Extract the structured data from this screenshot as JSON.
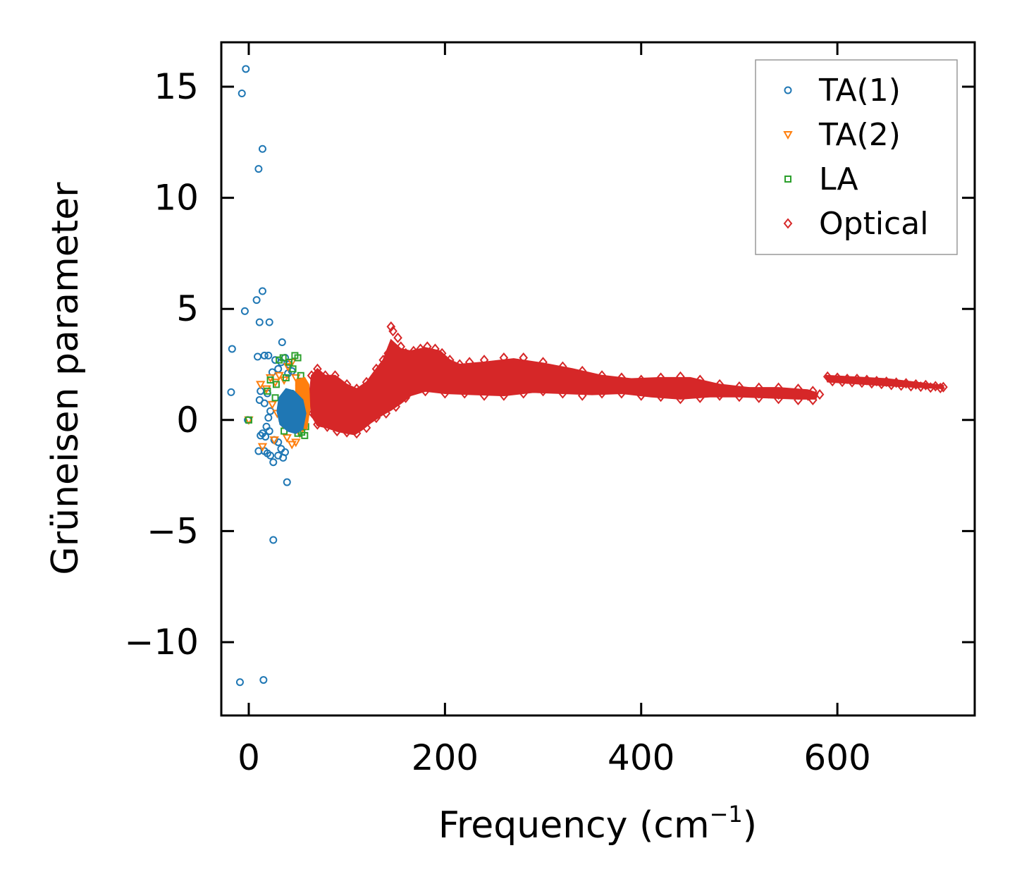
{
  "chart_data": {
    "type": "scatter",
    "title": "",
    "xlabel": "Frequency (cm",
    "xlabel_sup": "−1",
    "xlabel_close": ")",
    "ylabel": "Grüneisen parameter",
    "xlim": [
      -28,
      740
    ],
    "ylim": [
      -13.3,
      17.0
    ],
    "xticks": [
      0,
      200,
      400,
      600
    ],
    "xtick_labels": [
      "0",
      "200",
      "400",
      "600"
    ],
    "yticks": [
      -10,
      -5,
      0,
      5,
      10,
      15
    ],
    "ytick_labels": [
      "−10",
      "−5",
      "0",
      "5",
      "10",
      "15"
    ],
    "legend_position": "top-right",
    "series": [
      {
        "name": "TA(1)",
        "marker": "circle",
        "color": "#1f77b4",
        "points": [
          [
            -3,
            15.8
          ],
          [
            -7,
            14.7
          ],
          [
            14,
            12.2
          ],
          [
            10,
            11.3
          ],
          [
            14,
            5.8
          ],
          [
            8,
            5.4
          ],
          [
            -4,
            4.9
          ],
          [
            11,
            4.4
          ],
          [
            21,
            4.4
          ],
          [
            34,
            3.5
          ],
          [
            -17,
            3.2
          ],
          [
            16,
            2.9
          ],
          [
            9,
            2.85
          ],
          [
            20,
            2.9
          ],
          [
            27,
            2.7
          ],
          [
            33,
            2.6
          ],
          [
            37,
            2.8
          ],
          [
            41,
            2.5
          ],
          [
            30,
            2.3
          ],
          [
            44,
            2.2
          ],
          [
            40,
            2.1
          ],
          [
            24,
            2.15
          ],
          [
            -18,
            1.25
          ],
          [
            12,
            1.3
          ],
          [
            11,
            0.9
          ],
          [
            19,
            1.2
          ],
          [
            16,
            0.75
          ],
          [
            22,
            0.4
          ],
          [
            20,
            0.1
          ],
          [
            18,
            -0.3
          ],
          [
            -1,
            0
          ],
          [
            14,
            -0.6
          ],
          [
            12,
            -0.7
          ],
          [
            17,
            -0.75
          ],
          [
            21,
            -0.5
          ],
          [
            26,
            -0.9
          ],
          [
            30,
            -1.0
          ],
          [
            33,
            -1.3
          ],
          [
            16,
            -1.4
          ],
          [
            10,
            -1.4
          ],
          [
            19,
            -1.5
          ],
          [
            22,
            -1.6
          ],
          [
            30,
            -1.6
          ],
          [
            35,
            -1.7
          ],
          [
            37,
            -1.45
          ],
          [
            25,
            -1.9
          ],
          [
            39,
            -2.8
          ],
          [
            25,
            -5.4
          ],
          [
            -9,
            -11.8
          ],
          [
            15,
            -11.7
          ]
        ]
      },
      {
        "name": "TA(2)",
        "marker": "triangle-down",
        "color": "#ff7f0e",
        "points": [
          [
            0,
            0
          ],
          [
            12,
            1.6
          ],
          [
            18,
            1.4
          ],
          [
            22,
            1.9
          ],
          [
            27,
            1.7
          ],
          [
            31,
            2.0
          ],
          [
            36,
            1.8
          ],
          [
            40,
            2.4
          ],
          [
            44,
            2.6
          ],
          [
            48,
            1.9
          ],
          [
            52,
            1.4
          ],
          [
            55,
            1.2
          ],
          [
            58,
            0.9
          ],
          [
            24,
            0.7
          ],
          [
            29,
            0.3
          ],
          [
            35,
            -0.2
          ],
          [
            39,
            -0.8
          ],
          [
            44,
            -1.1
          ],
          [
            48,
            -1.0
          ],
          [
            14,
            -1.2
          ],
          [
            26,
            -0.9
          ],
          [
            52,
            -0.6
          ]
        ]
      },
      {
        "name": "LA",
        "marker": "square",
        "color": "#2ca02c",
        "points": [
          [
            0,
            0
          ],
          [
            31,
            2.7
          ],
          [
            35,
            2.8
          ],
          [
            41,
            2.6
          ],
          [
            47,
            2.9
          ],
          [
            50,
            2.8
          ],
          [
            45,
            2.3
          ],
          [
            53,
            2.0
          ],
          [
            38,
            1.9
          ],
          [
            28,
            1.6
          ],
          [
            22,
            1.8
          ],
          [
            19,
            1.3
          ],
          [
            42,
            1.2
          ],
          [
            56,
            0.4
          ],
          [
            58,
            -0.3
          ],
          [
            57,
            -0.7
          ],
          [
            54,
            -0.55
          ],
          [
            50,
            -0.6
          ],
          [
            46,
            -0.4
          ],
          [
            36,
            -0.5
          ],
          [
            27,
            1.0
          ]
        ]
      },
      {
        "name": "Optical",
        "marker": "diamond",
        "color": "#d62728",
        "points": [
          [
            145,
            4.2
          ],
          [
            147,
            4.0
          ],
          [
            152,
            3.7
          ],
          [
            155,
            3.3
          ],
          [
            160,
            3.0
          ],
          [
            168,
            3.1
          ],
          [
            175,
            3.2
          ],
          [
            182,
            3.3
          ],
          [
            190,
            3.2
          ],
          [
            197,
            3.0
          ],
          [
            205,
            2.7
          ],
          [
            215,
            2.5
          ],
          [
            225,
            2.6
          ],
          [
            240,
            2.7
          ],
          [
            260,
            2.8
          ],
          [
            280,
            2.8
          ],
          [
            300,
            2.6
          ],
          [
            320,
            2.4
          ],
          [
            340,
            2.2
          ],
          [
            360,
            2.0
          ],
          [
            380,
            1.9
          ],
          [
            400,
            1.8
          ],
          [
            420,
            1.9
          ],
          [
            440,
            1.95
          ],
          [
            460,
            1.8
          ],
          [
            480,
            1.6
          ],
          [
            500,
            1.5
          ],
          [
            520,
            1.45
          ],
          [
            540,
            1.45
          ],
          [
            560,
            1.4
          ],
          [
            575,
            1.3
          ],
          [
            582,
            1.15
          ],
          [
            575,
            0.9
          ],
          [
            560,
            0.9
          ],
          [
            540,
            0.95
          ],
          [
            520,
            1.0
          ],
          [
            500,
            1.05
          ],
          [
            480,
            1.1
          ],
          [
            460,
            1.0
          ],
          [
            440,
            0.95
          ],
          [
            420,
            1.05
          ],
          [
            400,
            1.1
          ],
          [
            380,
            1.2
          ],
          [
            360,
            1.2
          ],
          [
            340,
            1.1
          ],
          [
            320,
            1.2
          ],
          [
            300,
            1.3
          ],
          [
            280,
            1.2
          ],
          [
            260,
            1.1
          ],
          [
            240,
            1.1
          ],
          [
            220,
            1.2
          ],
          [
            200,
            1.2
          ],
          [
            180,
            1.3
          ],
          [
            160,
            1.0
          ],
          [
            150,
            0.6
          ],
          [
            140,
            0.3
          ],
          [
            130,
            0.1
          ],
          [
            120,
            -0.35
          ],
          [
            110,
            -0.6
          ],
          [
            100,
            -0.55
          ],
          [
            90,
            -0.5
          ],
          [
            80,
            -0.3
          ],
          [
            70,
            -0.2
          ],
          [
            65,
            0.3
          ],
          [
            62,
            1.2
          ],
          [
            64,
            2.0
          ],
          [
            70,
            2.3
          ],
          [
            78,
            2.0
          ],
          [
            88,
            2.0
          ],
          [
            100,
            1.6
          ],
          [
            110,
            1.4
          ],
          [
            120,
            1.7
          ],
          [
            130,
            2.3
          ],
          [
            137,
            2.7
          ],
          [
            142,
            3.0
          ],
          [
            90,
            0.5
          ],
          [
            100,
            0.8
          ],
          [
            110,
            0.6
          ],
          [
            120,
            0.8
          ],
          [
            130,
            1.2
          ],
          [
            140,
            1.5
          ],
          [
            150,
            1.9
          ],
          [
            160,
            2.2
          ],
          [
            170,
            2.5
          ],
          [
            180,
            2.7
          ],
          [
            190,
            2.7
          ],
          [
            200,
            2.2
          ],
          [
            210,
            1.9
          ],
          [
            220,
            2.0
          ],
          [
            230,
            1.8
          ],
          [
            240,
            1.9
          ],
          [
            250,
            1.8
          ],
          [
            260,
            2.0
          ],
          [
            270,
            2.1
          ],
          [
            280,
            1.9
          ],
          [
            290,
            1.8
          ],
          [
            300,
            1.7
          ],
          [
            310,
            1.8
          ],
          [
            320,
            1.7
          ],
          [
            330,
            1.5
          ],
          [
            340,
            1.6
          ],
          [
            350,
            1.5
          ],
          [
            360,
            1.45
          ],
          [
            370,
            1.5
          ],
          [
            380,
            1.4
          ],
          [
            390,
            1.45
          ],
          [
            400,
            1.5
          ],
          [
            410,
            1.4
          ],
          [
            420,
            1.6
          ],
          [
            430,
            1.5
          ],
          [
            440,
            1.4
          ],
          [
            450,
            1.5
          ],
          [
            460,
            1.4
          ],
          [
            470,
            1.3
          ],
          [
            480,
            1.35
          ],
          [
            490,
            1.3
          ],
          [
            500,
            1.3
          ],
          [
            510,
            1.25
          ],
          [
            520,
            1.2
          ],
          [
            530,
            1.2
          ],
          [
            540,
            1.15
          ],
          [
            550,
            1.2
          ],
          [
            560,
            1.15
          ],
          [
            570,
            1.1
          ],
          [
            590,
            1.95
          ],
          [
            600,
            1.9
          ],
          [
            610,
            1.85
          ],
          [
            620,
            1.85
          ],
          [
            630,
            1.8
          ],
          [
            640,
            1.75
          ],
          [
            650,
            1.72
          ],
          [
            660,
            1.68
          ],
          [
            670,
            1.65
          ],
          [
            680,
            1.6
          ],
          [
            690,
            1.57
          ],
          [
            700,
            1.52
          ],
          [
            708,
            1.48
          ],
          [
            595,
            1.75
          ],
          [
            605,
            1.72
          ],
          [
            615,
            1.7
          ],
          [
            625,
            1.68
          ],
          [
            635,
            1.65
          ],
          [
            645,
            1.62
          ],
          [
            655,
            1.58
          ],
          [
            665,
            1.55
          ],
          [
            675,
            1.52
          ],
          [
            685,
            1.5
          ],
          [
            695,
            1.46
          ],
          [
            705,
            1.44
          ]
        ]
      }
    ]
  }
}
